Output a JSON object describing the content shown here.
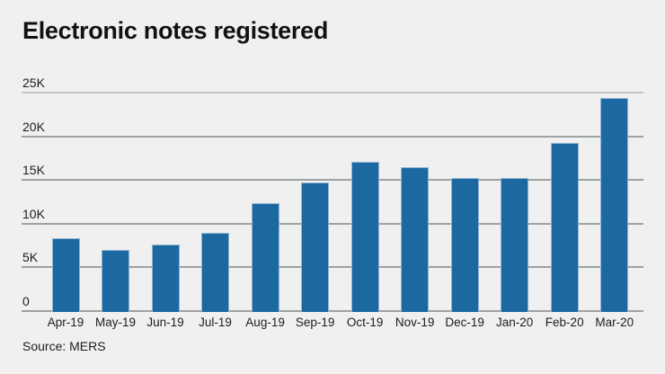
{
  "title": "Electronic notes registered",
  "source": "Source: MERS",
  "colors": {
    "background": "#eff0ef",
    "bar": "#1c68a0",
    "bar_edge": "#8fb4d4",
    "grid": "#9fa2a2",
    "grid_top": "#c5c8c7",
    "text": "#1c1c1c"
  },
  "chart_data": {
    "type": "bar",
    "title": "Electronic notes registered",
    "categories": [
      "Apr-19",
      "May-19",
      "Jun-19",
      "Jul-19",
      "Aug-19",
      "Sep-19",
      "Oct-19",
      "Nov-19",
      "Dec-19",
      "Jan-20",
      "Feb-20",
      "Mar-20"
    ],
    "values": [
      8300,
      7000,
      7600,
      9000,
      12300,
      14700,
      17100,
      16500,
      15200,
      15200,
      19200,
      24400
    ],
    "xlabel": "",
    "ylabel": "",
    "ylim": [
      0,
      25000
    ],
    "yticks": [
      0,
      5000,
      10000,
      15000,
      20000,
      25000
    ],
    "ytick_labels": [
      "0",
      "5K",
      "10K",
      "15K",
      "20K",
      "25K"
    ],
    "grid": true,
    "legend": false,
    "source": "Source: MERS"
  }
}
